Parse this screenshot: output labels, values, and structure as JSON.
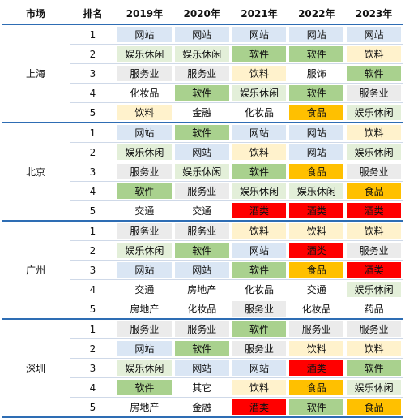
{
  "headers": [
    "市场",
    "排名",
    "2019年",
    "2020年",
    "2021年",
    "2022年",
    "2023年"
  ],
  "groups": [
    {
      "market": "上海",
      "rows": [
        {
          "rank": "1",
          "cells": [
            {
              "text": "网站",
              "color": "#dae6f4"
            },
            {
              "text": "网站",
              "color": "#dae6f4"
            },
            {
              "text": "网站",
              "color": "#dae6f4"
            },
            {
              "text": "网站",
              "color": "#dae6f4"
            },
            {
              "text": "网站",
              "color": "#dae6f4"
            }
          ]
        },
        {
          "rank": "2",
          "cells": [
            {
              "text": "娱乐休闲",
              "color": "#e3efd9"
            },
            {
              "text": "娱乐休闲",
              "color": "#e3efd9"
            },
            {
              "text": "软件",
              "color": "#a9d18e"
            },
            {
              "text": "软件",
              "color": "#a9d18e"
            },
            {
              "text": "饮料",
              "color": "#fff2cc"
            }
          ]
        },
        {
          "rank": "3",
          "cells": [
            {
              "text": "服务业",
              "color": "#ebebeb"
            },
            {
              "text": "服务业",
              "color": "#ebebeb"
            },
            {
              "text": "饮料",
              "color": "#fff2cc"
            },
            {
              "text": "服饰",
              "color": "#ffffff"
            },
            {
              "text": "软件",
              "color": "#a9d18e"
            }
          ]
        },
        {
          "rank": "4",
          "cells": [
            {
              "text": "化妆品",
              "color": "#ffffff"
            },
            {
              "text": "软件",
              "color": "#a9d18e"
            },
            {
              "text": "娱乐休闲",
              "color": "#e3efd9"
            },
            {
              "text": "软件",
              "color": "#a9d18e"
            },
            {
              "text": "服务业",
              "color": "#ebebeb"
            }
          ]
        },
        {
          "rank": "5",
          "cells": [
            {
              "text": "饮料",
              "color": "#fff2cc"
            },
            {
              "text": "金融",
              "color": "#ffffff"
            },
            {
              "text": "化妆品",
              "color": "#ffffff"
            },
            {
              "text": "食品",
              "color": "#ffc000"
            },
            {
              "text": "娱乐休闲",
              "color": "#e3efd9"
            }
          ]
        }
      ]
    },
    {
      "market": "北京",
      "rows": [
        {
          "rank": "1",
          "cells": [
            {
              "text": "网站",
              "color": "#dae6f4"
            },
            {
              "text": "软件",
              "color": "#a9d18e"
            },
            {
              "text": "网站",
              "color": "#dae6f4"
            },
            {
              "text": "网站",
              "color": "#dae6f4"
            },
            {
              "text": "饮料",
              "color": "#fff2cc"
            }
          ]
        },
        {
          "rank": "2",
          "cells": [
            {
              "text": "娱乐休闲",
              "color": "#e3efd9"
            },
            {
              "text": "网站",
              "color": "#dae6f4"
            },
            {
              "text": "饮料",
              "color": "#fff2cc"
            },
            {
              "text": "网站",
              "color": "#dae6f4"
            },
            {
              "text": "娱乐休闲",
              "color": "#e3efd9"
            }
          ]
        },
        {
          "rank": "3",
          "cells": [
            {
              "text": "服务业",
              "color": "#ebebeb"
            },
            {
              "text": "娱乐休闲",
              "color": "#e3efd9"
            },
            {
              "text": "软件",
              "color": "#a9d18e"
            },
            {
              "text": "食品",
              "color": "#ffc000"
            },
            {
              "text": "服务业",
              "color": "#ebebeb"
            }
          ]
        },
        {
          "rank": "4",
          "cells": [
            {
              "text": "软件",
              "color": "#a9d18e"
            },
            {
              "text": "服务业",
              "color": "#ebebeb"
            },
            {
              "text": "娱乐休闲",
              "color": "#e3efd9"
            },
            {
              "text": "娱乐休闲",
              "color": "#e3efd9"
            },
            {
              "text": "食品",
              "color": "#ffc000"
            }
          ]
        },
        {
          "rank": "5",
          "cells": [
            {
              "text": "交通",
              "color": "#ffffff"
            },
            {
              "text": "交通",
              "color": "#ffffff"
            },
            {
              "text": "酒类",
              "color": "#ff0000"
            },
            {
              "text": "酒类",
              "color": "#ff0000"
            },
            {
              "text": "酒类",
              "color": "#ff0000"
            }
          ]
        }
      ]
    },
    {
      "market": "广州",
      "rows": [
        {
          "rank": "1",
          "cells": [
            {
              "text": "服务业",
              "color": "#ebebeb"
            },
            {
              "text": "服务业",
              "color": "#ebebeb"
            },
            {
              "text": "饮料",
              "color": "#fff2cc"
            },
            {
              "text": "饮料",
              "color": "#fff2cc"
            },
            {
              "text": "饮料",
              "color": "#fff2cc"
            }
          ]
        },
        {
          "rank": "2",
          "cells": [
            {
              "text": "娱乐休闲",
              "color": "#e3efd9"
            },
            {
              "text": "软件",
              "color": "#a9d18e"
            },
            {
              "text": "网站",
              "color": "#dae6f4"
            },
            {
              "text": "酒类",
              "color": "#ff0000"
            },
            {
              "text": "服务业",
              "color": "#ebebeb"
            }
          ]
        },
        {
          "rank": "3",
          "cells": [
            {
              "text": "网站",
              "color": "#dae6f4"
            },
            {
              "text": "网站",
              "color": "#dae6f4"
            },
            {
              "text": "软件",
              "color": "#a9d18e"
            },
            {
              "text": "食品",
              "color": "#ffc000"
            },
            {
              "text": "酒类",
              "color": "#ff0000"
            }
          ]
        },
        {
          "rank": "4",
          "cells": [
            {
              "text": "交通",
              "color": "#ffffff"
            },
            {
              "text": "房地产",
              "color": "#ffffff"
            },
            {
              "text": "化妆品",
              "color": "#ffffff"
            },
            {
              "text": "交通",
              "color": "#ffffff"
            },
            {
              "text": "娱乐休闲",
              "color": "#e3efd9"
            }
          ]
        },
        {
          "rank": "5",
          "cells": [
            {
              "text": "房地产",
              "color": "#ffffff"
            },
            {
              "text": "化妆品",
              "color": "#ffffff"
            },
            {
              "text": "服务业",
              "color": "#ebebeb"
            },
            {
              "text": "化妆品",
              "color": "#ffffff"
            },
            {
              "text": "药品",
              "color": "#ffffff"
            }
          ]
        }
      ]
    },
    {
      "market": "深圳",
      "rows": [
        {
          "rank": "1",
          "cells": [
            {
              "text": "服务业",
              "color": "#ebebeb"
            },
            {
              "text": "服务业",
              "color": "#ebebeb"
            },
            {
              "text": "软件",
              "color": "#a9d18e"
            },
            {
              "text": "服务业",
              "color": "#ebebeb"
            },
            {
              "text": "服务业",
              "color": "#ebebeb"
            }
          ]
        },
        {
          "rank": "2",
          "cells": [
            {
              "text": "网站",
              "color": "#dae6f4"
            },
            {
              "text": "软件",
              "color": "#a9d18e"
            },
            {
              "text": "服务业",
              "color": "#ebebeb"
            },
            {
              "text": "饮料",
              "color": "#fff2cc"
            },
            {
              "text": "饮料",
              "color": "#fff2cc"
            }
          ]
        },
        {
          "rank": "3",
          "cells": [
            {
              "text": "娱乐休闲",
              "color": "#e3efd9"
            },
            {
              "text": "网站",
              "color": "#dae6f4"
            },
            {
              "text": "网站",
              "color": "#dae6f4"
            },
            {
              "text": "酒类",
              "color": "#ff0000"
            },
            {
              "text": "软件",
              "color": "#a9d18e"
            }
          ]
        },
        {
          "rank": "4",
          "cells": [
            {
              "text": "软件",
              "color": "#a9d18e"
            },
            {
              "text": "其它",
              "color": "#ffffff"
            },
            {
              "text": "饮料",
              "color": "#fff2cc"
            },
            {
              "text": "食品",
              "color": "#ffc000"
            },
            {
              "text": "娱乐休闲",
              "color": "#e3efd9"
            }
          ]
        },
        {
          "rank": "5",
          "cells": [
            {
              "text": "房地产",
              "color": "#ffffff"
            },
            {
              "text": "金融",
              "color": "#ffffff"
            },
            {
              "text": "酒类",
              "color": "#ff0000"
            },
            {
              "text": "软件",
              "color": "#a9d18e"
            },
            {
              "text": "食品",
              "color": "#ffc000"
            }
          ]
        }
      ]
    }
  ]
}
